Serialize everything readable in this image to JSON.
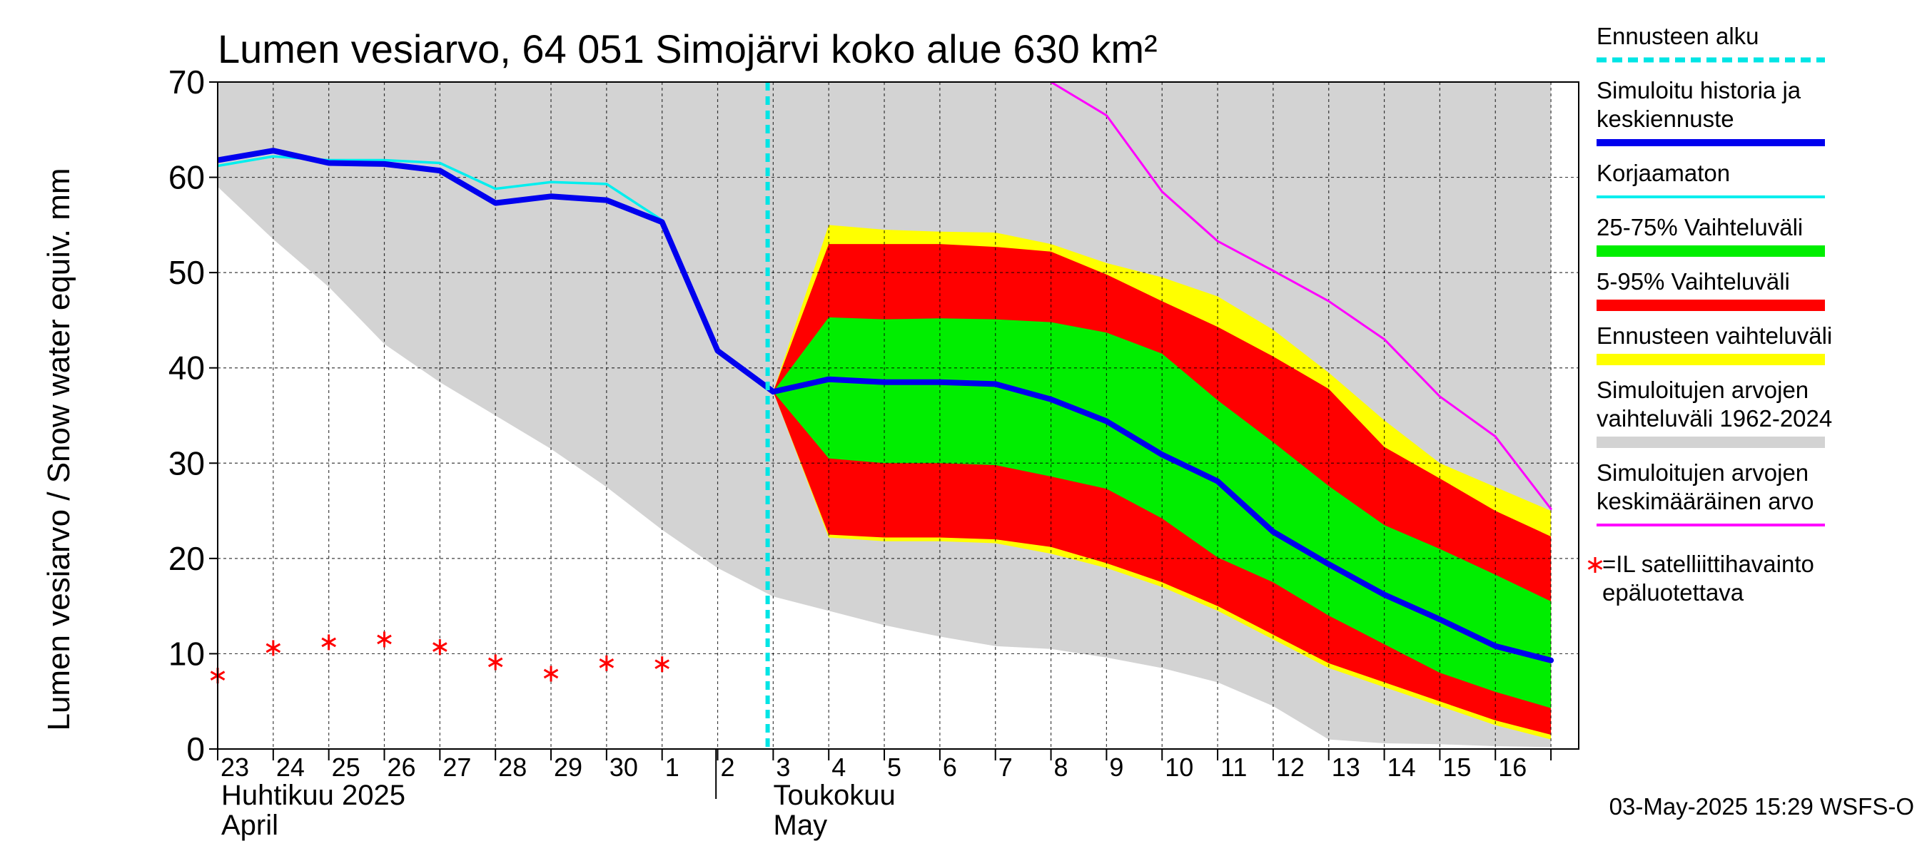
{
  "chart_data": {
    "type": "area",
    "title": "Lumen vesiarvo, 64 051 Simojärvi koko alue 630 km²",
    "ylabel": "Lumen vesiarvo / Snow water equiv.    mm",
    "ylim": [
      0,
      70
    ],
    "yticks": [
      0,
      10,
      20,
      30,
      40,
      50,
      60,
      70
    ],
    "x_day_labels": [
      "23",
      "24",
      "25",
      "26",
      "27",
      "28",
      "29",
      "30",
      "1",
      "2",
      "3",
      "4",
      "5",
      "6",
      "7",
      "8",
      "9",
      "10",
      "11",
      "12",
      "13",
      "14",
      "15",
      "16"
    ],
    "month_labels": [
      {
        "fi": "Huhtikuu  2025",
        "en": "April",
        "start_index": 0
      },
      {
        "fi": "Toukokuu",
        "en": "May",
        "start_index": 9
      }
    ],
    "forecast_start_index": 10,
    "timestamp": "03-May-2025 15:29 WSFS-O",
    "x_index": [
      0,
      1,
      2,
      3,
      4,
      5,
      6,
      7,
      8,
      9,
      10,
      11,
      12,
      13,
      14,
      15,
      16,
      17,
      18,
      19,
      20,
      21,
      22,
      23,
      24
    ],
    "series": {
      "hist_range": {
        "name": "Simuloitujen arvojen vaihteluväli 1962-2024",
        "color": "#d3d3d3",
        "upper": [
          70,
          70,
          70,
          70,
          70,
          70,
          70,
          70,
          70,
          70,
          70,
          70,
          70,
          70,
          70,
          70,
          70,
          70,
          70,
          70,
          70,
          70,
          70,
          70,
          70
        ],
        "lower": [
          59,
          53.5,
          48.5,
          42.5,
          38.5,
          35,
          31.5,
          27.5,
          23,
          19,
          16,
          14.5,
          13,
          11.8,
          10.8,
          10.5,
          9.6,
          8.5,
          7,
          4.5,
          1,
          0.6,
          0.5,
          0.3,
          0.2
        ]
      },
      "forecast_range": {
        "name": "Ennusteen vaihteluväli",
        "color": "#ffff00",
        "x_start": 10,
        "upper": [
          37.5,
          55,
          54.5,
          54.3,
          54.2,
          53,
          51,
          49.5,
          47.5,
          44,
          39.5,
          34.5,
          30,
          27.5,
          25
        ],
        "lower": [
          37.5,
          22.2,
          21.8,
          21.8,
          21.6,
          20.5,
          19,
          17,
          14.5,
          11.5,
          8.5,
          6.5,
          4.5,
          2.5,
          1
        ]
      },
      "p5_95": {
        "name": "5-95% Vaihteluväli",
        "color": "#ff0000",
        "x_start": 10,
        "upper": [
          37.5,
          53,
          53,
          53,
          52.7,
          52.2,
          49.8,
          47,
          44.3,
          41.2,
          37.8,
          31.7,
          28.4,
          25,
          22.3
        ],
        "lower": [
          37.5,
          22.5,
          22.2,
          22.2,
          22,
          21.2,
          19.5,
          17.5,
          15,
          12,
          9,
          7,
          5,
          3,
          1.5
        ]
      },
      "p25_75": {
        "name": "25-75% Vaihteluväli",
        "color": "#00ee00",
        "x_start": 10,
        "upper": [
          37.5,
          45.3,
          45.1,
          45.2,
          45.1,
          44.8,
          43.7,
          41.5,
          36.6,
          32.2,
          27.6,
          23.5,
          21,
          18.3,
          15.5
        ],
        "lower": [
          37.5,
          30.5,
          30,
          30,
          29.8,
          28.6,
          27.3,
          24.2,
          20.1,
          17.5,
          14,
          11,
          8,
          6,
          4.3
        ]
      },
      "mean": {
        "name": "Simuloitujen arvojen keskimääräinen arvo",
        "color": "#ff00ff",
        "x_start": 15,
        "values": [
          70,
          66.5,
          58.5,
          53.3,
          50.2,
          47,
          43,
          37,
          32.8,
          25.2
        ]
      },
      "uncorrected": {
        "name": "Korjaamaton",
        "color": "#00eeee",
        "x_start": 0,
        "values": [
          61.2,
          62.2,
          61.8,
          61.8,
          61.5,
          58.8,
          59.5,
          59.3,
          55.5
        ]
      },
      "simulated": {
        "name": "Simuloitu historia ja keskiennuste",
        "color": "#0000ee",
        "x_start": 0,
        "values": [
          61.8,
          62.8,
          61.5,
          61.4,
          60.7,
          57.3,
          58,
          57.6,
          55.3,
          41.8,
          37.5,
          38.8,
          38.5,
          38.5,
          38.3,
          36.7,
          34.4,
          30.9,
          28.1,
          22.8,
          19.4,
          16.2,
          13.6,
          10.8,
          9.3
        ]
      },
      "satellite": {
        "name": "=IL satelliittihavainto epäluotettava",
        "color": "#ff0000",
        "x": [
          0,
          1,
          2,
          3,
          4,
          5,
          6,
          7,
          8
        ],
        "values": [
          7.7,
          10.6,
          11.2,
          11.5,
          10.7,
          9.1,
          7.9,
          9.0,
          8.9
        ]
      }
    }
  },
  "legend": [
    {
      "key": "forecast_start",
      "lines": [
        "Ennusteen alku"
      ],
      "color": "#00e5e5",
      "style": "dashed"
    },
    {
      "key": "simulated",
      "lines": [
        "Simuloitu historia ja",
        "keskiennuste"
      ],
      "color": "#0000ee",
      "style": "thick"
    },
    {
      "key": "uncorrected",
      "lines": [
        "Korjaamaton"
      ],
      "color": "#00eeee",
      "style": "thin"
    },
    {
      "key": "p25_75",
      "lines": [
        "25-75% Vaihteluväli"
      ],
      "color": "#00ee00",
      "style": "band"
    },
    {
      "key": "p5_95",
      "lines": [
        "5-95% Vaihteluväli"
      ],
      "color": "#ff0000",
      "style": "band"
    },
    {
      "key": "forecast_range",
      "lines": [
        "Ennusteen vaihteluväli"
      ],
      "color": "#ffff00",
      "style": "band"
    },
    {
      "key": "hist_range",
      "lines": [
        "Simuloitujen arvojen",
        "vaihteluväli 1962-2024"
      ],
      "color": "#d3d3d3",
      "style": "band"
    },
    {
      "key": "mean",
      "lines": [
        "Simuloitujen arvojen",
        "keskimääräinen arvo"
      ],
      "color": "#ff00ff",
      "style": "thin"
    },
    {
      "key": "satellite",
      "lines": [
        "=IL satelliittihavainto",
        "epäluotettava"
      ],
      "color": "#ff0000",
      "style": "marker"
    }
  ]
}
